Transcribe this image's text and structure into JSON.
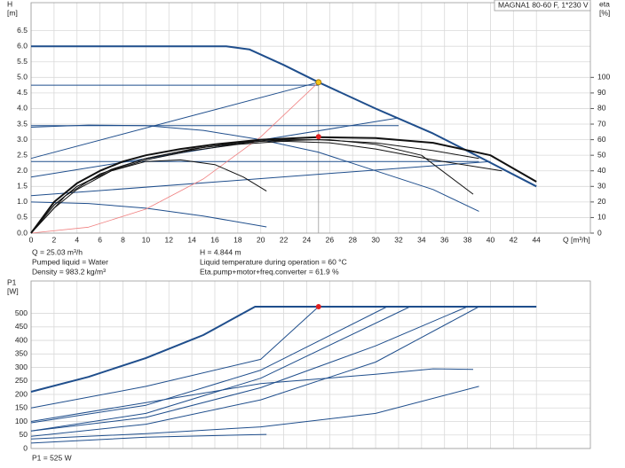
{
  "chart_data": [
    {
      "type": "line",
      "title": "MAGNA1 80-60 F, 1*230 V",
      "ylabel": [
        "H",
        "[m]"
      ],
      "y2label": [
        "eta",
        "[%]"
      ],
      "xlabel": "Q [m³/h]",
      "xlim": [
        0,
        48.7
      ],
      "xticks": [
        0,
        2,
        4,
        6,
        8,
        10,
        12,
        14,
        16,
        18,
        20,
        22,
        24,
        26,
        28,
        30,
        32,
        34,
        36,
        38,
        40,
        42,
        44
      ],
      "ylim": [
        0,
        7.4
      ],
      "yticks": [
        {
          "value": 0,
          "label": "0.0"
        },
        0.5,
        {
          "value": 1,
          "label": "1.0"
        },
        1.5,
        {
          "value": 2,
          "label": "2.0"
        },
        2.5,
        {
          "value": 3,
          "label": "3.0"
        },
        3.5,
        {
          "value": 4,
          "label": "4.0"
        },
        4.5,
        {
          "value": 5,
          "label": "5.0"
        },
        5.5,
        {
          "value": 6,
          "label": "6.0"
        },
        6.5
      ],
      "y2lim": [
        0,
        148
      ],
      "y2ticks": [
        0,
        10,
        20,
        30,
        40,
        50,
        60,
        70,
        80,
        90,
        100
      ],
      "grid": true,
      "show_xtick_labels": true,
      "series": [
        {
          "color": "#1f4e8c",
          "linewidth": 2,
          "x": [
            0,
            17,
            19,
            22,
            25.03,
            30,
            35,
            39,
            44
          ],
          "values": [
            6,
            6,
            5.9,
            5.4,
            4.844,
            4.0,
            3.2,
            2.45,
            1.5
          ]
        },
        {
          "color": "#1f4e8c",
          "linewidth": 1,
          "x": [
            0,
            25.03
          ],
          "values": [
            2.4,
            4.844
          ]
        },
        {
          "color": "#1f4e8c",
          "linewidth": 1,
          "x": [
            0,
            25.03
          ],
          "values": [
            4.75,
            4.75
          ]
        },
        {
          "color": "#1f4e8c",
          "linewidth": 1,
          "x": [
            0,
            32
          ],
          "values": [
            1.8,
            3.7
          ]
        },
        {
          "color": "#1f4e8c",
          "linewidth": 1,
          "x": [
            0,
            32
          ],
          "values": [
            3.45,
            3.45
          ]
        },
        {
          "color": "#1f4e8c",
          "linewidth": 1,
          "x": [
            0,
            5,
            10,
            15,
            20,
            25,
            30,
            35,
            39
          ],
          "values": [
            3.4,
            3.47,
            3.45,
            3.3,
            3.0,
            2.6,
            2.0,
            1.4,
            0.7
          ]
        },
        {
          "color": "#1f4e8c",
          "linewidth": 1,
          "x": [
            0,
            39
          ],
          "values": [
            2.3,
            2.3
          ]
        },
        {
          "color": "#1f4e8c",
          "linewidth": 1,
          "x": [
            0,
            40
          ],
          "values": [
            1.2,
            2.3
          ]
        },
        {
          "color": "#1f4e8c",
          "linewidth": 1,
          "x": [
            0,
            5,
            10,
            15,
            20.5
          ],
          "values": [
            1.0,
            0.95,
            0.8,
            0.55,
            0.2
          ]
        },
        {
          "color": "#f08080",
          "linewidth": 0.8,
          "x": [
            0,
            5,
            10,
            15,
            20,
            25.03
          ],
          "values": [
            0,
            0.19,
            0.77,
            1.74,
            3.09,
            4.844
          ]
        },
        {
          "color": "#111111",
          "linewidth": 2,
          "axis": "y2",
          "x": [
            0,
            2,
            4,
            6,
            8,
            10,
            13,
            16,
            20,
            25,
            30,
            35,
            40,
            44
          ],
          "values": [
            0,
            20,
            32,
            40,
            46,
            50,
            54,
            57,
            60,
            61.6,
            61,
            58,
            50,
            33
          ]
        },
        {
          "color": "#111111",
          "linewidth": 1,
          "axis": "y2",
          "x": [
            0,
            2,
            4,
            7,
            10,
            14,
            18,
            22,
            26,
            30,
            34,
            38.5
          ],
          "values": [
            0,
            18,
            30,
            41,
            48,
            54,
            58,
            60,
            60,
            57,
            50,
            25
          ]
        },
        {
          "color": "#111111",
          "linewidth": 1,
          "axis": "y2",
          "x": [
            0,
            3,
            6,
            10,
            15,
            20,
            25,
            30,
            35,
            39
          ],
          "values": [
            0,
            24,
            38,
            48,
            55,
            59,
            60,
            58,
            53,
            48
          ]
        },
        {
          "color": "#111111",
          "linewidth": 1,
          "axis": "y2",
          "x": [
            0,
            2,
            4,
            7,
            10,
            14,
            18,
            22,
            26,
            30,
            35,
            41
          ],
          "values": [
            0,
            16,
            28,
            40,
            47,
            53,
            57,
            59,
            58,
            54,
            47,
            40
          ]
        },
        {
          "color": "#111111",
          "linewidth": 1,
          "axis": "y2",
          "x": [
            0,
            2,
            4,
            7,
            10,
            13,
            16,
            18.5,
            20.5
          ],
          "values": [
            0,
            18,
            30,
            40,
            46,
            47,
            44,
            36,
            27
          ]
        }
      ],
      "markers": [
        {
          "x": 25.03,
          "y": 4.844,
          "color": "#f5c518"
        },
        {
          "x": 25.03,
          "y": 61.9,
          "color": "#e02020",
          "axis": "y2"
        }
      ],
      "annotations": [
        "Q = 25.03 m³/h",
        "H = 4.844 m",
        "Pumped liquid = Water",
        "Liquid temperature during operation = 60 °C",
        "Density = 983.2 kg/m³",
        "Eta.pump+motor+freq.converter = 61.9 %"
      ]
    },
    {
      "type": "line",
      "ylabel": [
        "P1",
        "[W]"
      ],
      "xlim": [
        0,
        48.7
      ],
      "xticks": [
        0,
        2,
        4,
        6,
        8,
        10,
        12,
        14,
        16,
        18,
        20,
        22,
        24,
        26,
        28,
        30,
        32,
        34,
        36,
        38,
        40,
        42,
        44
      ],
      "ylim": [
        0,
        620
      ],
      "yticks": [
        0,
        50,
        100,
        150,
        200,
        250,
        300,
        350,
        400,
        450,
        500
      ],
      "grid": true,
      "show_xtick_labels": false,
      "series": [
        {
          "color": "#1f4e8c",
          "linewidth": 2,
          "x": [
            0,
            5,
            10,
            15,
            19.5,
            44
          ],
          "values": [
            210,
            265,
            335,
            420,
            525,
            525
          ]
        },
        {
          "color": "#1f4e8c",
          "linewidth": 1,
          "x": [
            0,
            10,
            20,
            25.03
          ],
          "values": [
            150,
            230,
            330,
            525
          ]
        },
        {
          "color": "#1f4e8c",
          "linewidth": 1,
          "x": [
            0,
            10,
            20,
            31
          ],
          "values": [
            95,
            160,
            290,
            525
          ]
        },
        {
          "color": "#1f4e8c",
          "linewidth": 1,
          "x": [
            0,
            10,
            20,
            33
          ],
          "values": [
            65,
            130,
            260,
            525
          ]
        },
        {
          "color": "#1f4e8c",
          "linewidth": 1,
          "x": [
            0,
            10,
            20,
            30,
            38
          ],
          "values": [
            65,
            115,
            225,
            380,
            525
          ]
        },
        {
          "color": "#1f4e8c",
          "linewidth": 1,
          "x": [
            0,
            10,
            20,
            30,
            39
          ],
          "values": [
            45,
            90,
            180,
            320,
            525
          ]
        },
        {
          "color": "#1f4e8c",
          "linewidth": 1,
          "x": [
            0,
            10,
            20,
            30,
            35,
            38.5
          ],
          "values": [
            100,
            170,
            240,
            275,
            295,
            293
          ]
        },
        {
          "color": "#1f4e8c",
          "linewidth": 1,
          "x": [
            0,
            10,
            20,
            30,
            39
          ],
          "values": [
            35,
            55,
            80,
            130,
            230
          ]
        },
        {
          "color": "#1f4e8c",
          "linewidth": 1,
          "x": [
            0,
            10,
            20.5
          ],
          "values": [
            20,
            42,
            52
          ]
        }
      ],
      "markers": [
        {
          "x": 25.03,
          "y": 525,
          "color": "#e02020"
        }
      ],
      "annotations": [
        "P1 = 525 W"
      ]
    }
  ]
}
